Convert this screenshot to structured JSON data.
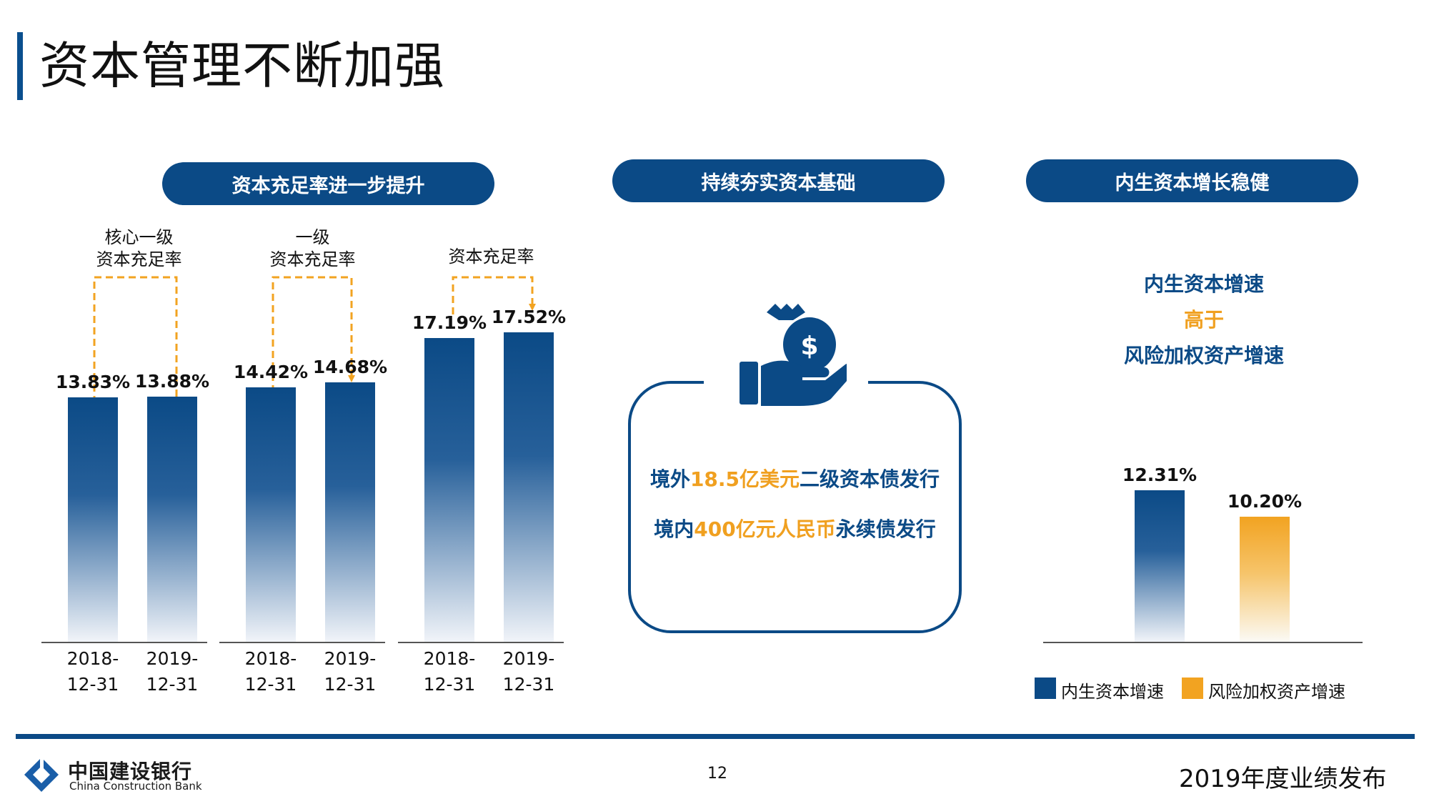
{
  "title": "资本管理不断加强",
  "sections": {
    "left": "资本充足率进一步提升",
    "middle": "持续夯实资本基础",
    "right": "内生资本增长稳健"
  },
  "chart_data": [
    {
      "type": "bar",
      "groups": [
        {
          "label_lines": [
            "核心一级",
            "资本充足率"
          ],
          "categories": [
            "2018-12-31",
            "2019-12-31"
          ],
          "values": [
            13.83,
            13.88
          ],
          "value_labels": [
            "13.83%",
            "13.88%"
          ]
        },
        {
          "label_lines": [
            "一级",
            "资本充足率"
          ],
          "categories": [
            "2018-12-31",
            "2019-12-31"
          ],
          "values": [
            14.42,
            14.68
          ],
          "value_labels": [
            "14.42%",
            "14.68%"
          ]
        },
        {
          "label_lines": [
            "资本充足率"
          ],
          "categories": [
            "2018-12-31",
            "2019-12-31"
          ],
          "values": [
            17.19,
            17.52
          ],
          "value_labels": [
            "17.19%",
            "17.52%"
          ]
        }
      ]
    },
    {
      "type": "bar",
      "series": [
        {
          "name": "内生资本增速",
          "value": 12.31,
          "value_label": "12.31%",
          "color": "#0b4a86"
        },
        {
          "name": "风险加权资产增速",
          "value": 10.2,
          "value_label": "10.20%",
          "color": "#f2a321"
        }
      ]
    }
  ],
  "middle_box": {
    "line1": {
      "a": "境外",
      "b": "18.5亿美元",
      "c": "二级资本债发行"
    },
    "line2": {
      "a": "境内",
      "b": "400亿元人民币",
      "c": "永续债发行"
    },
    "icon": "hand-money-bag-icon"
  },
  "right_text": {
    "line1": "内生资本增速",
    "line2": "高于",
    "line3": "风险加权资产增速"
  },
  "footer": {
    "bank_cn": "中国建设银行",
    "bank_en": "China Construction Bank",
    "page": "12",
    "right": "2019年度业绩发布"
  },
  "colors": {
    "primary": "#0b4a86",
    "accent": "#f2a321"
  }
}
